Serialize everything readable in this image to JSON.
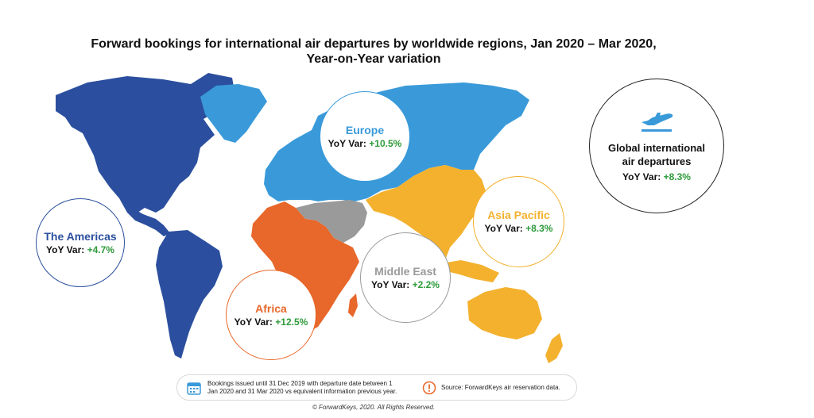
{
  "title": {
    "line1": "Forward bookings for international air departures by worldwide regions, Jan 2020 – Mar 2020,",
    "line2": "Year-on-Year variation"
  },
  "regions": {
    "americas": {
      "name": "The Americas",
      "yoy_label": "YoY Var:",
      "yoy_value": "+4.7%",
      "color": "#2b4f9e"
    },
    "europe": {
      "name": "Europe",
      "yoy_label": "YoY Var:",
      "yoy_value": "+10.5%",
      "color": "#3a9ad9"
    },
    "asia_pacific": {
      "name": "Asia Pacific",
      "yoy_label": "YoY Var:",
      "yoy_value": "+8.3%",
      "color": "#f3b12e"
    },
    "middle_east": {
      "name": "Middle East",
      "yoy_label": "YoY Var:",
      "yoy_value": "+2.2%",
      "color": "#9a9a9a"
    },
    "africa": {
      "name": "Africa",
      "yoy_label": "YoY Var:",
      "yoy_value": "+12.5%",
      "color": "#e8672a"
    }
  },
  "global": {
    "name_line1": "Global international",
    "name_line2": "air departures",
    "yoy_label": "YoY Var:",
    "yoy_value": "+8.3%",
    "icon": "airplane-icon"
  },
  "notes": {
    "bookings_line1": "Bookings issued until 31 Dec 2019 with departure date between 1",
    "bookings_line2": "Jan 2020 and 31 Mar 2020 vs equivalent information previous year.",
    "source": "Source: ForwardKeys air reservation data.",
    "calendar_icon": "calendar-icon",
    "alert_icon": "exclamation-icon"
  },
  "copyright": "© ForwardKeys, 2020. All Rights Reserved.",
  "colors": {
    "green": "#2e9a3a"
  }
}
